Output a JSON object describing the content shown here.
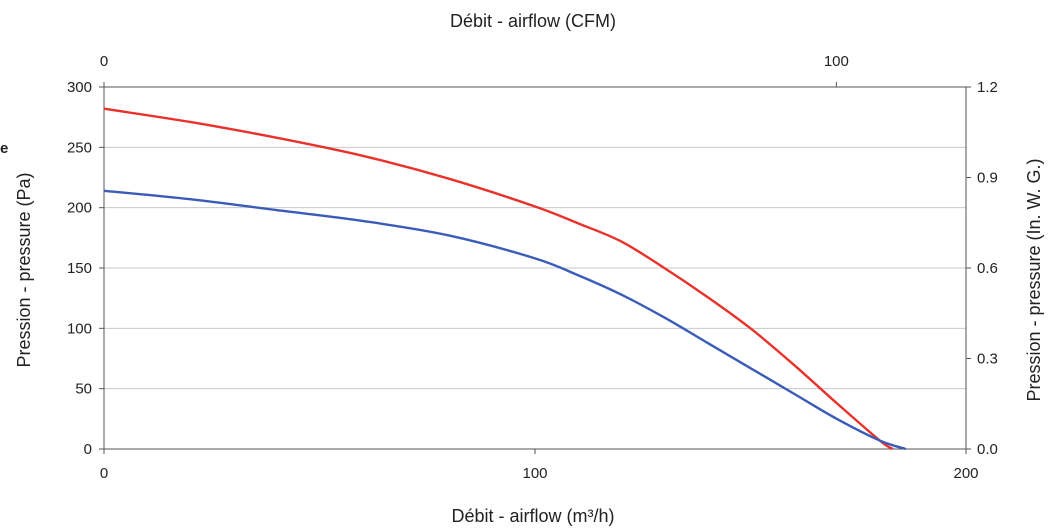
{
  "chart_data": {
    "type": "line",
    "title": "",
    "xlabel_bottom": "Débit - airflow (m³/h)",
    "xlabel_top": "Débit - airflow (CFM)",
    "ylabel_left": "Pression - pressure (Pa)",
    "ylabel_right": "Pression - pressure (In. W. G.)",
    "stray_label": "e",
    "xlim": [
      0,
      200
    ],
    "ylim": [
      0,
      300
    ],
    "x2lim": [
      0,
      117.7
    ],
    "y2lim": [
      0,
      1.2
    ],
    "x_ticks": [
      "0",
      "100",
      "200"
    ],
    "x_tick_values": [
      0,
      100,
      200
    ],
    "y_ticks": [
      "0",
      "50",
      "100",
      "150",
      "200",
      "250",
      "300"
    ],
    "y_tick_values": [
      0,
      50,
      100,
      150,
      200,
      250,
      300
    ],
    "x2_ticks": [
      "0",
      "100"
    ],
    "x2_tick_values": [
      0,
      100
    ],
    "y2_ticks": [
      "0.0",
      "0.3",
      "0.6",
      "0.9",
      "1.2"
    ],
    "y2_tick_values": [
      0,
      0.3,
      0.6,
      0.9,
      1.2
    ],
    "grid": true,
    "series": [
      {
        "color": "#e8322b",
        "x": [
          0,
          20,
          40,
          60,
          80,
          100,
          110,
          120,
          130,
          140,
          150,
          160,
          170,
          180,
          183
        ],
        "y": [
          282,
          271,
          258,
          243,
          224,
          201,
          187,
          172,
          150,
          126,
          100,
          70,
          38,
          7,
          0
        ]
      },
      {
        "color": "#3a5cb8",
        "x": [
          0,
          20,
          40,
          60,
          80,
          100,
          110,
          120,
          130,
          140,
          150,
          160,
          170,
          180,
          186
        ],
        "y": [
          214,
          207,
          198,
          189,
          177,
          158,
          144,
          128,
          109,
          88,
          67,
          46,
          25,
          7,
          0
        ]
      }
    ]
  }
}
